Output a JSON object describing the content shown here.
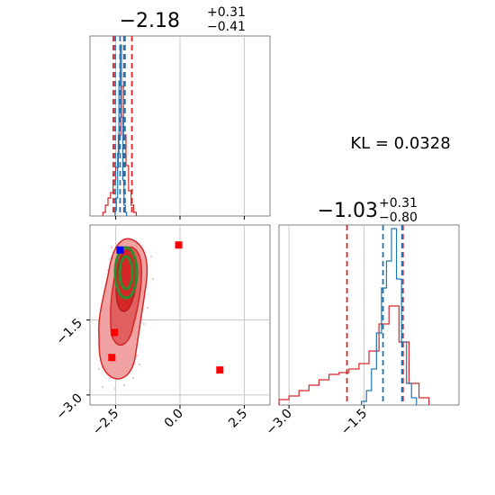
{
  "chart_data": [
    {
      "type": "step-histogram",
      "panel": "marginal-param-1",
      "title": {
        "value": "−2.18",
        "plus": "+0.31",
        "minus": "−0.41"
      },
      "xlim": [
        -3.5,
        3.5
      ],
      "grid": true,
      "x_ticks": [
        -2.5,
        0.0,
        2.5
      ],
      "series": [
        {
          "color": "#d62728",
          "bins": [
            [
              -2.95,
              0.02
            ],
            [
              -2.85,
              0.06
            ],
            [
              -2.75,
              0.1
            ],
            [
              -2.65,
              0.13
            ],
            [
              -2.55,
              0.2
            ],
            [
              -2.45,
              0.27
            ],
            [
              -2.35,
              0.45
            ],
            [
              -2.25,
              0.72
            ],
            [
              -2.15,
              0.45
            ],
            [
              -2.05,
              0.28
            ],
            [
              -1.95,
              0.14
            ],
            [
              -1.85,
              0.06
            ],
            [
              -1.75,
              0.02
            ]
          ]
        },
        {
          "color": "#1f77b4",
          "bins": [
            [
              -2.5,
              0.03
            ],
            [
              -2.45,
              0.1
            ],
            [
              -2.4,
              0.35
            ],
            [
              -2.35,
              0.75
            ],
            [
              -2.3,
              0.95
            ],
            [
              -2.25,
              0.55
            ],
            [
              -2.2,
              0.2
            ],
            [
              -2.15,
              0.06
            ],
            [
              -2.1,
              0.02
            ]
          ]
        }
      ],
      "vlines": [
        {
          "x": -2.59,
          "color": "#d62728",
          "style": "dashed"
        },
        {
          "x": -2.18,
          "color": "#d62728",
          "style": "dashed"
        },
        {
          "x": -1.87,
          "color": "#d62728",
          "style": "dashed"
        },
        {
          "x": -2.52,
          "color": "#1f77b4",
          "style": "dashed"
        },
        {
          "x": -2.33,
          "color": "#1f77b4",
          "style": "dashed"
        },
        {
          "x": -2.14,
          "color": "#1f77b4",
          "style": "dashed"
        }
      ]
    },
    {
      "type": "scatter-contour",
      "panel": "joint",
      "xlim": [
        -3.5,
        3.5
      ],
      "ylim": [
        -3.2,
        0.4
      ],
      "grid": true,
      "x_ticks": [
        -2.5,
        0.0,
        2.5
      ],
      "y_ticks": [
        -1.5,
        -3.0
      ],
      "points": [
        {
          "x": -2.55,
          "y": -1.75,
          "color": "#ff0000",
          "marker": "square"
        },
        {
          "x": -2.65,
          "y": -2.25,
          "color": "#ff0000",
          "marker": "square"
        },
        {
          "x": -0.05,
          "y": 0.0,
          "color": "#ff0000",
          "marker": "square"
        },
        {
          "x": 1.55,
          "y": -2.5,
          "color": "#ff0000",
          "marker": "square"
        },
        {
          "x": -2.33,
          "y": -0.1,
          "color": "#0000ff",
          "marker": "square"
        }
      ]
    },
    {
      "type": "step-histogram",
      "panel": "marginal-param-2",
      "title": {
        "value": "−1.03",
        "plus": "+0.31",
        "minus": "−0.80"
      },
      "xlim": [
        -3.2,
        0.4
      ],
      "grid": true,
      "x_ticks": [
        -3.0,
        -1.5
      ],
      "series": [
        {
          "color": "#d62728",
          "bins": [
            [
              -3.1,
              0.03
            ],
            [
              -2.9,
              0.05
            ],
            [
              -2.7,
              0.08
            ],
            [
              -2.5,
              0.11
            ],
            [
              -2.3,
              0.14
            ],
            [
              -2.1,
              0.17
            ],
            [
              -1.9,
              0.18
            ],
            [
              -1.7,
              0.2
            ],
            [
              -1.5,
              0.23
            ],
            [
              -1.3,
              0.3
            ],
            [
              -1.1,
              0.45
            ],
            [
              -0.9,
              0.55
            ],
            [
              -0.7,
              0.35
            ],
            [
              -0.5,
              0.12
            ],
            [
              -0.3,
              0.04
            ]
          ]
        },
        {
          "color": "#1f77b4",
          "bins": [
            [
              -1.5,
              0.02
            ],
            [
              -1.4,
              0.08
            ],
            [
              -1.3,
              0.2
            ],
            [
              -1.2,
              0.4
            ],
            [
              -1.1,
              0.65
            ],
            [
              -1.0,
              0.8
            ],
            [
              -0.9,
              0.98
            ],
            [
              -0.8,
              0.7
            ],
            [
              -0.7,
              0.35
            ],
            [
              -0.6,
              0.12
            ],
            [
              -0.5,
              0.04
            ]
          ]
        }
      ],
      "vlines": [
        {
          "x": -1.84,
          "color": "#d62728",
          "style": "dashed"
        },
        {
          "x": -0.72,
          "color": "#d62728",
          "style": "dashed"
        },
        {
          "x": -1.12,
          "color": "#1f77b4",
          "style": "dashed"
        },
        {
          "x": -0.74,
          "color": "#1f77b4",
          "style": "dashed"
        }
      ]
    }
  ],
  "annotation": {
    "kl_text": "KL = 0.0328"
  }
}
